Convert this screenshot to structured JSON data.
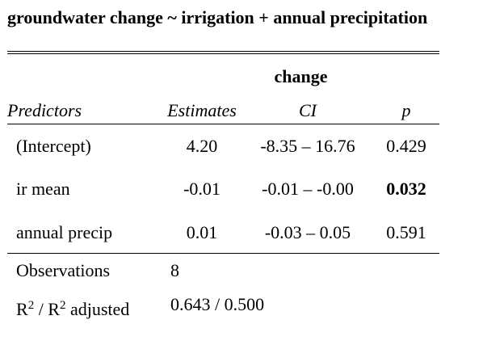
{
  "caption": "groundwater change ~ irrigation + annual precipitation",
  "dependent_variable": "change",
  "header": {
    "predictors": "Predictors",
    "estimates": "Estimates",
    "ci": "CI",
    "p": "p"
  },
  "rows": [
    {
      "predictor": "(Intercept)",
      "estimate": "4.20",
      "ci": "-8.35 – 16.76",
      "p": "0.429",
      "significant": false
    },
    {
      "predictor": "ir mean",
      "estimate": "-0.01",
      "ci": "-0.01 – -0.00",
      "p": "0.032",
      "significant": true
    },
    {
      "predictor": "annual precip",
      "estimate": "0.01",
      "ci": "-0.03 – 0.05",
      "p": "0.591",
      "significant": false
    }
  ],
  "footer": {
    "observations_label": "Observations",
    "observations_value": "8",
    "r2_label_r": "R",
    "r2_label_sup1": "2",
    "r2_label_mid": " / R",
    "r2_label_sup2": "2",
    "r2_label_end": " adjusted",
    "r2_value": "0.643 / 0.500"
  }
}
